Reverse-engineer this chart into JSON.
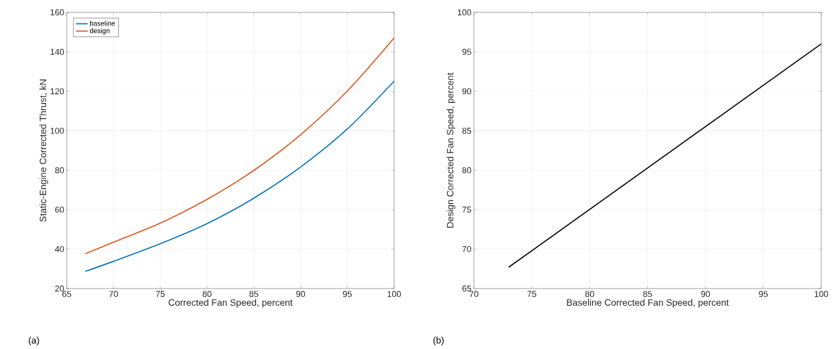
{
  "chart_data": [
    {
      "type": "line",
      "xlabel": "Corrected Fan Speed, percent",
      "ylabel": "Static-Engine Corrected Thrust, kN",
      "x": [
        67,
        70,
        75,
        80,
        85,
        90,
        95,
        100
      ],
      "series": [
        {
          "name": "baseline",
          "color": "#0072bd",
          "values": [
            28.7,
            33.8,
            42.7,
            52.9,
            65.8,
            81.6,
            100.9,
            125.1
          ]
        },
        {
          "name": "design",
          "color": "#d95319",
          "values": [
            37.7,
            43.5,
            53.2,
            65.2,
            79.9,
            98,
            120.1,
            147
          ]
        }
      ],
      "xlim": [
        65,
        100
      ],
      "ylim": [
        20,
        160
      ],
      "xticks": [
        65,
        70,
        75,
        80,
        85,
        90,
        95,
        100
      ],
      "yticks": [
        20,
        40,
        60,
        80,
        100,
        120,
        140,
        160
      ],
      "grid": true,
      "legend": "top left",
      "annotations": [
        "(a)"
      ]
    },
    {
      "type": "line",
      "xlabel": "Baseline Corrected Fan Speed, percent",
      "ylabel": "Design Corrected Fan Speed, percent",
      "x": [
        73,
        100
      ],
      "series": [
        {
          "color": "#000000",
          "values": [
            67.7,
            96
          ]
        }
      ],
      "xlim": [
        70,
        100
      ],
      "ylim": [
        65,
        100
      ],
      "xticks": [
        70,
        75,
        80,
        85,
        90,
        95,
        100
      ],
      "yticks": [
        65,
        70,
        75,
        80,
        85,
        90,
        95,
        100
      ],
      "grid": true,
      "legend": false,
      "annotations": [
        "(b)"
      ]
    }
  ]
}
